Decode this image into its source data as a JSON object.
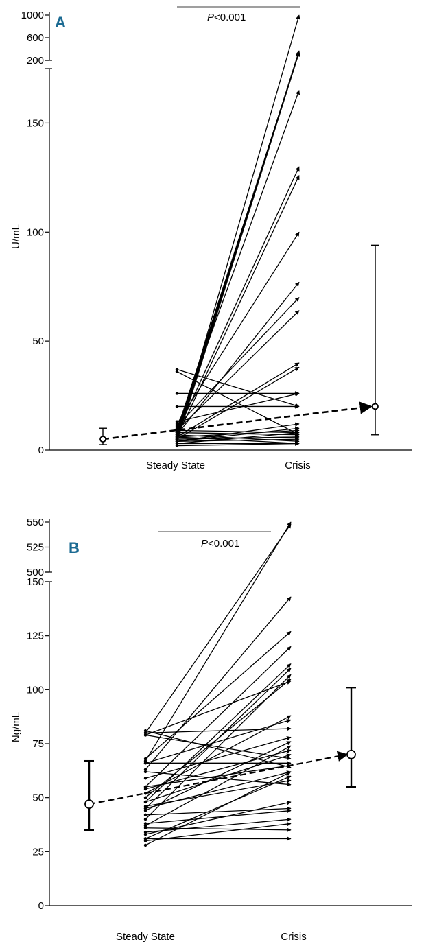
{
  "chart_data": [
    {
      "type": "line",
      "panel_label": "A",
      "ylabel": "U/mL",
      "categories": [
        "Steady State",
        "Crisis"
      ],
      "annotation": "<0.001",
      "annotation_prefix": "P",
      "y_axis_broken": true,
      "ylim": [
        0,
        1000
      ],
      "yticks_lower": [
        0,
        50,
        100,
        150
      ],
      "yticks_upper": [
        200,
        600,
        1000
      ],
      "colors": {
        "panel_label": "#1b6a92",
        "lines": "#000000"
      },
      "paired_values": [
        [
          5,
          1000
        ],
        [
          6,
          370
        ],
        [
          7,
          360
        ],
        [
          8,
          355
        ],
        [
          5,
          350
        ],
        [
          9,
          345
        ],
        [
          4,
          340
        ],
        [
          10,
          165
        ],
        [
          8,
          130
        ],
        [
          6,
          126
        ],
        [
          12,
          100
        ],
        [
          7,
          77
        ],
        [
          11,
          70
        ],
        [
          9,
          64
        ],
        [
          6,
          40
        ],
        [
          5,
          38
        ],
        [
          37,
          20
        ],
        [
          26,
          26
        ],
        [
          13,
          26
        ],
        [
          20,
          20
        ],
        [
          36,
          7
        ],
        [
          4,
          10
        ],
        [
          6,
          9
        ],
        [
          3,
          8
        ],
        [
          8,
          7
        ],
        [
          5,
          6
        ],
        [
          4,
          5
        ],
        [
          7,
          4
        ],
        [
          3,
          3
        ],
        [
          6,
          3
        ],
        [
          2,
          3
        ],
        [
          9,
          8
        ],
        [
          4,
          12
        ],
        [
          5,
          6
        ]
      ],
      "summary": {
        "steady": {
          "median": 5,
          "low": 2.5,
          "high": 10
        },
        "crisis": {
          "median": 20,
          "low": 7,
          "high": 94
        }
      }
    },
    {
      "type": "line",
      "panel_label": "B",
      "ylabel": "Ng/mL",
      "categories": [
        "Steady State",
        "Crisis"
      ],
      "annotation": "<0.001",
      "annotation_prefix": "P",
      "y_axis_broken": true,
      "ylim": [
        0,
        550
      ],
      "yticks_lower": [
        0,
        25,
        50,
        75,
        100,
        125,
        150
      ],
      "yticks_upper": [
        500,
        525,
        550
      ],
      "colors": {
        "panel_label": "#1b6a92",
        "lines": "#000000"
      },
      "paired_values": [
        [
          67,
          550
        ],
        [
          80,
          548
        ],
        [
          63,
          143
        ],
        [
          68,
          127
        ],
        [
          55,
          120
        ],
        [
          48,
          112
        ],
        [
          45,
          110
        ],
        [
          40,
          107
        ],
        [
          50,
          105
        ],
        [
          79,
          104
        ],
        [
          52,
          88
        ],
        [
          66,
          86
        ],
        [
          80,
          82
        ],
        [
          59,
          78
        ],
        [
          44,
          76
        ],
        [
          37,
          74
        ],
        [
          54,
          72
        ],
        [
          48,
          70
        ],
        [
          79,
          68
        ],
        [
          66,
          66
        ],
        [
          81,
          64
        ],
        [
          28,
          62
        ],
        [
          31,
          60
        ],
        [
          46,
          58
        ],
        [
          62,
          56
        ],
        [
          33,
          48
        ],
        [
          42,
          45
        ],
        [
          38,
          44
        ],
        [
          34,
          40
        ],
        [
          30,
          38
        ],
        [
          36,
          35
        ],
        [
          31,
          31
        ],
        [
          45,
          62
        ],
        [
          55,
          65
        ]
      ],
      "summary": {
        "steady": {
          "median": 47,
          "low": 35,
          "high": 67
        },
        "crisis": {
          "median": 70,
          "low": 55,
          "high": 101
        }
      }
    }
  ]
}
